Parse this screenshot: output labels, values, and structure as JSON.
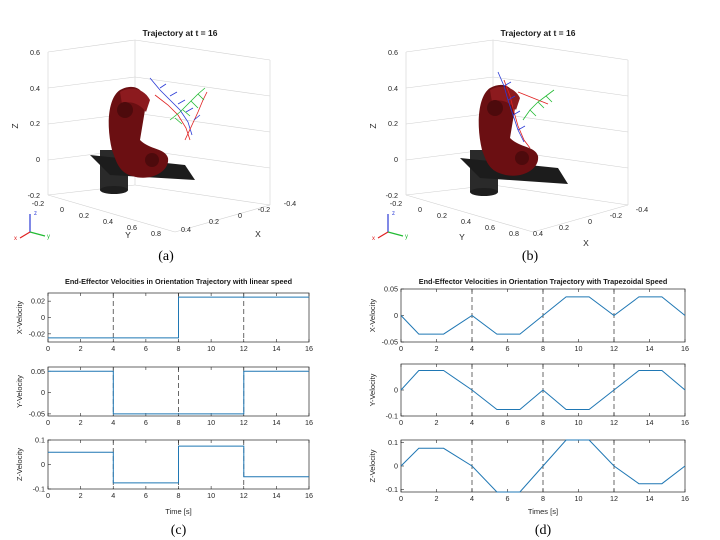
{
  "panels_3d": [
    {
      "title": "Trajectory at t = 16",
      "caption": "(a)",
      "z_ticks": [
        "0.6",
        "0.4",
        "0.2",
        "0",
        "-0.2"
      ],
      "y_ticks": [
        "-0.2",
        "0",
        "0.2",
        "0.4",
        "0.6",
        "0.8"
      ],
      "x_ticks": [
        "0.4",
        "0.2",
        "0",
        "-0.2",
        "-0.4"
      ],
      "zlabel": "Z",
      "ylabel": "Y",
      "xlabel": "X"
    },
    {
      "title": "Trajectory at t = 16",
      "caption": "(b)",
      "z_ticks": [
        "0.6",
        "0.4",
        "0.2",
        "0",
        "-0.2"
      ],
      "y_ticks": [
        "-0.2",
        "0",
        "0.2",
        "0.4",
        "0.6",
        "0.8"
      ],
      "x_ticks": [
        "0.4",
        "0.2",
        "0",
        "-0.2",
        "-0.4"
      ],
      "zlabel": "Z",
      "ylabel": "Y",
      "xlabel": "X"
    }
  ],
  "triad_labels": {
    "x": "x",
    "y": "y",
    "z": "z"
  },
  "colors": {
    "line": "#1f77b4",
    "dash": "#444444",
    "robot": "#6b0f12",
    "base": "#2a2a2a"
  },
  "chart_data": [
    {
      "type": "line",
      "title": "End-Effector Velocities in Orientation Trajectory with linear speed",
      "caption": "(c)",
      "xlabel": "Time [s]",
      "xlim": [
        0,
        16
      ],
      "x_ticks": [
        0,
        2,
        4,
        6,
        8,
        10,
        12,
        14,
        16
      ],
      "segment_lines": [
        4,
        8,
        12
      ],
      "series": [
        {
          "name": "X-Velocity",
          "ylim": [
            -0.03,
            0.03
          ],
          "y_ticks": [
            "0.02",
            "0",
            "-0.02"
          ],
          "y_tick_values": [
            0.02,
            0,
            -0.02
          ],
          "x": [
            0,
            4,
            4,
            8,
            8,
            12,
            12,
            16
          ],
          "y": [
            -0.025,
            -0.025,
            -0.025,
            -0.025,
            0.025,
            0.025,
            0.025,
            0.025
          ]
        },
        {
          "name": "Y-Velocity",
          "ylim": [
            -0.055,
            0.06
          ],
          "y_ticks": [
            "0.05",
            "0",
            "-0.05"
          ],
          "y_tick_values": [
            0.05,
            0,
            -0.05
          ],
          "x": [
            0,
            4,
            4,
            8,
            8,
            12,
            12,
            16
          ],
          "y": [
            0.05,
            0.05,
            -0.05,
            -0.05,
            -0.05,
            -0.05,
            0.05,
            0.05
          ]
        },
        {
          "name": "Z-Velocity",
          "ylim": [
            -0.1,
            0.1
          ],
          "y_ticks": [
            "0.1",
            "0",
            "-0.1"
          ],
          "y_tick_values": [
            0.1,
            0,
            -0.1
          ],
          "x": [
            0,
            4,
            4,
            8,
            8,
            12,
            12,
            16
          ],
          "y": [
            0.05,
            0.05,
            -0.075,
            -0.075,
            0.075,
            0.075,
            -0.05,
            -0.05
          ]
        }
      ]
    },
    {
      "type": "line",
      "title": "End-Effector Velocities in Orientation Trajectory  with Trapezoidal Speed",
      "caption": "(d)",
      "xlabel": "Times [s]",
      "xlim": [
        0,
        16
      ],
      "x_ticks": [
        0,
        2,
        4,
        6,
        8,
        10,
        12,
        14,
        16
      ],
      "segment_lines": [
        4,
        8,
        12
      ],
      "series": [
        {
          "name": "X-Velocity",
          "ylim": [
            -0.05,
            0.05
          ],
          "y_ticks": [
            "0.05",
            "0",
            "-0.05"
          ],
          "y_tick_values": [
            0.05,
            0,
            -0.05
          ],
          "x": [
            0,
            1,
            2.4,
            4,
            5.4,
            6.7,
            8,
            9.3,
            10.6,
            12,
            13.4,
            14.7,
            16
          ],
          "y": [
            0,
            -0.035,
            -0.035,
            0,
            -0.035,
            -0.035,
            0,
            0.035,
            0.035,
            0,
            0.035,
            0.035,
            0
          ]
        },
        {
          "name": "Y-Velocity",
          "ylim": [
            -0.1,
            0.1
          ],
          "y_ticks": [
            "0",
            "-0.1"
          ],
          "y_tick_values": [
            0,
            -0.1
          ],
          "x": [
            0,
            1,
            2.4,
            4,
            5.4,
            6.7,
            8,
            9.3,
            10.6,
            12,
            13.4,
            14.7,
            16
          ],
          "y": [
            0,
            0.075,
            0.075,
            0,
            -0.075,
            -0.075,
            0,
            -0.075,
            -0.075,
            0,
            0.075,
            0.075,
            0
          ]
        },
        {
          "name": "Z-Velocity",
          "ylim": [
            -0.11,
            0.11
          ],
          "y_ticks": [
            "0.1",
            "0",
            "-0.1"
          ],
          "y_tick_values": [
            0.1,
            0,
            -0.1
          ],
          "x": [
            0,
            1,
            2.4,
            4,
            5.4,
            6.7,
            8,
            9.3,
            10.6,
            12,
            13.4,
            14.7,
            16
          ],
          "y": [
            0,
            0.075,
            0.075,
            0,
            -0.11,
            -0.11,
            0,
            0.11,
            0.11,
            0,
            -0.075,
            -0.075,
            0
          ]
        }
      ]
    }
  ]
}
